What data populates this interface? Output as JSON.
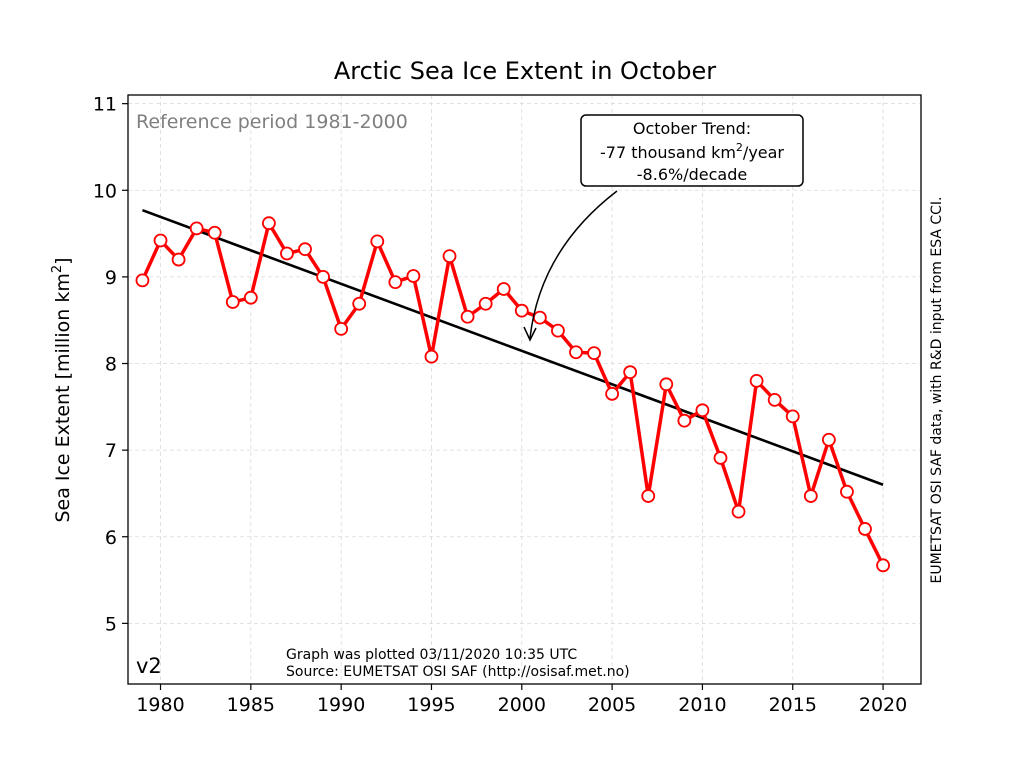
{
  "chart_data": {
    "type": "line",
    "title": "Arctic Sea Ice Extent in October",
    "ylabel_main": "Sea Ice Extent [million km",
    "ylabel_sup": "2",
    "ylabel_close": "]",
    "xlabel": "",
    "xlim": [
      1978.2,
      2022.1
    ],
    "ylim": [
      4.3,
      11.1
    ],
    "xticks": [
      1980,
      1985,
      1990,
      1995,
      2000,
      2005,
      2010,
      2015,
      2020
    ],
    "yticks": [
      5,
      6,
      7,
      8,
      9,
      10,
      11
    ],
    "grid": true,
    "series": [
      {
        "x": [
          1979,
          1980,
          1981,
          1982,
          1983,
          1984,
          1985,
          1986,
          1987,
          1988,
          1989,
          1990,
          1991,
          1992,
          1993,
          1994,
          1995,
          1996,
          1997,
          1998,
          1999,
          2000,
          2001,
          2002,
          2003,
          2004,
          2005,
          2006,
          2007,
          2008,
          2009,
          2010,
          2011,
          2012,
          2013,
          2014,
          2015,
          2016,
          2017,
          2018,
          2019,
          2020
        ],
        "values": [
          8.96,
          9.42,
          9.2,
          9.56,
          9.51,
          8.71,
          8.76,
          9.62,
          9.27,
          9.32,
          9.0,
          8.4,
          8.69,
          9.41,
          8.94,
          9.01,
          8.08,
          9.24,
          8.54,
          8.69,
          8.86,
          8.61,
          8.53,
          8.38,
          8.13,
          8.12,
          7.65,
          7.9,
          6.47,
          7.76,
          7.34,
          7.46,
          6.91,
          6.29,
          7.8,
          7.58,
          7.39,
          6.47,
          7.12,
          6.52,
          6.09,
          5.67
        ],
        "color": "#ff0000"
      },
      {
        "x": [
          1979,
          2020
        ],
        "values": [
          9.77,
          6.6
        ],
        "color": "#000000"
      }
    ],
    "annotations": {
      "reference": "Reference period 1981-2000",
      "trend_line1": "October Trend:",
      "trend_line2_pre": "-77 thousand km",
      "trend_line2_sup": "2",
      "trend_line2_post": "/year",
      "trend_line3": "-8.6%/decade",
      "version": "v2",
      "plotted": "Graph was plotted 03/11/2020 10:35 UTC",
      "source": "Source: EUMETSAT OSI SAF (http://osisaf.met.no)",
      "credit": "EUMETSAT OSI SAF data, with R&D input from ESA CCI."
    }
  }
}
